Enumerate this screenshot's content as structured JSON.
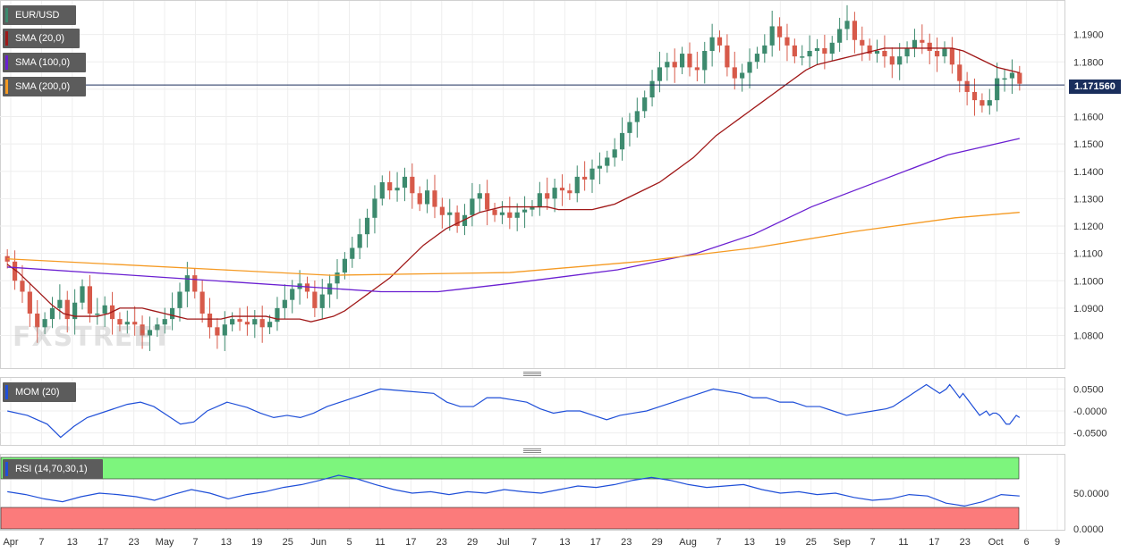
{
  "colors": {
    "bull": "#3d8a6e",
    "bear": "#d75a4a",
    "sma20": "#a01818",
    "sma100": "#6a1fd1",
    "sma200": "#f59a23",
    "mom": "#1f4fd8",
    "rsi": "#1f4fd8",
    "rsi_over": "#7df57d",
    "rsi_under": "#fb7b7b",
    "price_line": "#1a2e5c"
  },
  "legend": {
    "symbol": "EUR/USD",
    "sma20": "SMA (20,0)",
    "sma100": "SMA (100,0)",
    "sma200": "SMA (200,0)",
    "mom": "MOM (20)",
    "rsi": "RSI (14,70,30,1)"
  },
  "watermark": "FXSTREET",
  "last_price_label": "1.171560",
  "chart_data": [
    {
      "type": "candlestick",
      "title": "EUR/USD",
      "ylim": [
        1.072,
        1.2
      ],
      "y_ticks": [
        "1.1900",
        "1.1800",
        "1.1700",
        "1.1600",
        "1.1500",
        "1.1400",
        "1.1300",
        "1.1200",
        "1.1100",
        "1.1000",
        "1.0900",
        "1.0800"
      ],
      "x_ticks": [
        "Apr",
        "7",
        "13",
        "17",
        "23",
        "May",
        "7",
        "13",
        "19",
        "25",
        "Jun",
        "5",
        "11",
        "17",
        "23",
        "29",
        "Jul",
        "7",
        "13",
        "17",
        "23",
        "29",
        "Aug",
        "7",
        "13",
        "19",
        "25",
        "Sep",
        "7",
        "11",
        "17",
        "23",
        "Oct",
        "6",
        "9"
      ],
      "last_price": 1.17156,
      "closes": [
        1.107,
        1.1,
        1.096,
        1.088,
        1.083,
        1.086,
        1.09,
        1.093,
        1.086,
        1.092,
        1.098,
        1.088,
        1.088,
        1.091,
        1.086,
        1.084,
        1.085,
        1.084,
        1.08,
        1.082,
        1.084,
        1.086,
        1.09,
        1.096,
        1.102,
        1.096,
        1.088,
        1.083,
        1.08,
        1.084,
        1.086,
        1.085,
        1.084,
        1.086,
        1.083,
        1.085,
        1.09,
        1.093,
        1.097,
        1.099,
        1.096,
        1.09,
        1.095,
        1.099,
        1.103,
        1.108,
        1.112,
        1.117,
        1.123,
        1.13,
        1.136,
        1.133,
        1.134,
        1.138,
        1.132,
        1.128,
        1.133,
        1.127,
        1.124,
        1.125,
        1.12,
        1.124,
        1.13,
        1.132,
        1.126,
        1.124,
        1.125,
        1.123,
        1.125,
        1.126,
        1.127,
        1.132,
        1.13,
        1.134,
        1.133,
        1.132,
        1.138,
        1.137,
        1.141,
        1.142,
        1.145,
        1.148,
        1.154,
        1.158,
        1.162,
        1.167,
        1.173,
        1.178,
        1.18,
        1.178,
        1.183,
        1.178,
        1.177,
        1.184,
        1.189,
        1.186,
        1.178,
        1.174,
        1.176,
        1.18,
        1.183,
        1.186,
        1.193,
        1.189,
        1.186,
        1.182,
        1.182,
        1.184,
        1.185,
        1.183,
        1.187,
        1.192,
        1.195,
        1.188,
        1.186,
        1.183,
        1.184,
        1.182,
        1.179,
        1.182,
        1.185,
        1.188,
        1.187,
        1.184,
        1.182,
        1.185,
        1.179,
        1.173,
        1.169,
        1.166,
        1.164,
        1.166,
        1.174,
        1.174,
        1.176,
        1.172
      ],
      "sma20": [
        1.106,
        1.103,
        1.099,
        1.095,
        1.091,
        1.088,
        1.087,
        1.087,
        1.087,
        1.088,
        1.09,
        1.09,
        1.09,
        1.089,
        1.088,
        1.087,
        1.086,
        1.086,
        1.086,
        1.086,
        1.087,
        1.087,
        1.087,
        1.087,
        1.086,
        1.086,
        1.086,
        1.085,
        1.086,
        1.087,
        1.089,
        1.092,
        1.095,
        1.098,
        1.101,
        1.105,
        1.109,
        1.113,
        1.116,
        1.119,
        1.121,
        1.123,
        1.125,
        1.126,
        1.127,
        1.127,
        1.127,
        1.127,
        1.127,
        1.126,
        1.126,
        1.126,
        1.126,
        1.127,
        1.128,
        1.13,
        1.132,
        1.134,
        1.136,
        1.139,
        1.142,
        1.145,
        1.149,
        1.153,
        1.156,
        1.159,
        1.162,
        1.165,
        1.168,
        1.171,
        1.174,
        1.177,
        1.179,
        1.18,
        1.181,
        1.182,
        1.183,
        1.184,
        1.185,
        1.185,
        1.185,
        1.185,
        1.185,
        1.185,
        1.185,
        1.184,
        1.182,
        1.18,
        1.178,
        1.177,
        1.176
      ],
      "sma20_start_index": 44,
      "sma100": [
        1.105,
        1.096,
        1.096,
        1.099,
        1.104,
        1.11,
        1.117,
        1.127,
        1.137,
        1.146,
        1.152
      ],
      "sma100_at": [
        0,
        52,
        60,
        70,
        85,
        96,
        104,
        112,
        122,
        131,
        141
      ],
      "sma200": [
        1.108,
        1.104,
        1.102,
        1.103,
        1.107,
        1.112,
        1.118,
        1.123,
        1.125
      ],
      "sma200_at": [
        0,
        30,
        45,
        70,
        88,
        104,
        118,
        132,
        141
      ]
    },
    {
      "type": "line",
      "title": "MOM (20)",
      "ylim": [
        -0.065,
        0.065
      ],
      "y_ticks": [
        "0.0500",
        "-0.0000",
        "-0.0500"
      ],
      "values": [
        0.0,
        -0.01,
        -0.03,
        -0.06,
        -0.035,
        -0.015,
        0.0,
        0.015,
        0.02,
        0.01,
        -0.01,
        -0.03,
        -0.025,
        0.0,
        0.02,
        0.008,
        -0.005,
        -0.015,
        -0.01,
        -0.015,
        -0.005,
        0.01,
        0.03,
        0.05,
        0.045,
        0.04,
        0.02,
        0.01,
        0.01,
        0.03,
        0.03,
        0.025,
        0.02,
        0.005,
        -0.005,
        0.0,
        0.0,
        -0.01,
        -0.02,
        -0.01,
        -0.005,
        0.0,
        0.01,
        0.02,
        0.03,
        0.04,
        0.05,
        0.045,
        0.04,
        0.03,
        0.03,
        0.02,
        0.02,
        0.01,
        0.01,
        0.0,
        -0.01,
        -0.005,
        0.0,
        0.005,
        0.01,
        0.02,
        0.03,
        0.04,
        0.05,
        0.06,
        0.05,
        0.04,
        0.05,
        0.06,
        0.05,
        0.04,
        0.03,
        0.04,
        0.03,
        0.02,
        0.01,
        0.0,
        -0.01,
        -0.005,
        0.0,
        -0.01,
        -0.005,
        -0.005,
        -0.01,
        -0.02,
        -0.03,
        -0.03,
        -0.02,
        -0.01,
        -0.015
      ],
      "at": [
        0,
        3,
        6,
        8,
        10,
        12,
        15,
        18,
        20,
        22,
        24,
        26,
        28,
        30,
        33,
        36,
        38,
        40,
        42,
        44,
        46,
        48,
        52,
        56,
        60,
        64,
        66,
        68,
        70,
        72,
        74,
        76,
        78,
        80,
        82,
        84,
        86,
        88,
        90,
        92,
        94,
        96,
        98,
        100,
        102,
        104,
        106,
        108,
        110,
        112,
        114,
        116,
        118,
        120,
        122,
        124,
        126,
        128,
        130,
        132,
        133,
        134,
        135,
        136,
        137,
        138,
        139,
        140,
        141,
        141.5,
        142,
        142.5,
        143,
        143.5,
        144,
        144.5,
        145,
        145.5,
        146,
        146.5,
        147,
        147.5,
        148,
        148.5,
        149,
        149.5,
        150,
        150.5,
        151,
        151.5,
        152
      ]
    },
    {
      "type": "line",
      "title": "RSI (14,70,30,1)",
      "ylim": [
        0,
        100
      ],
      "y_ticks": [
        "50.0000",
        "0.0000"
      ],
      "overbought": 70,
      "oversold": 30,
      "values": [
        52,
        48,
        42,
        38,
        45,
        50,
        48,
        45,
        40,
        48,
        55,
        50,
        42,
        48,
        52,
        58,
        62,
        68,
        75,
        70,
        62,
        55,
        50,
        52,
        48,
        52,
        50,
        55,
        52,
        50,
        55,
        60,
        58,
        62,
        68,
        72,
        68,
        62,
        58,
        60,
        62,
        55,
        50,
        52,
        48,
        50,
        44,
        40,
        42,
        48,
        46,
        36,
        32,
        38,
        48,
        46
      ]
    }
  ]
}
